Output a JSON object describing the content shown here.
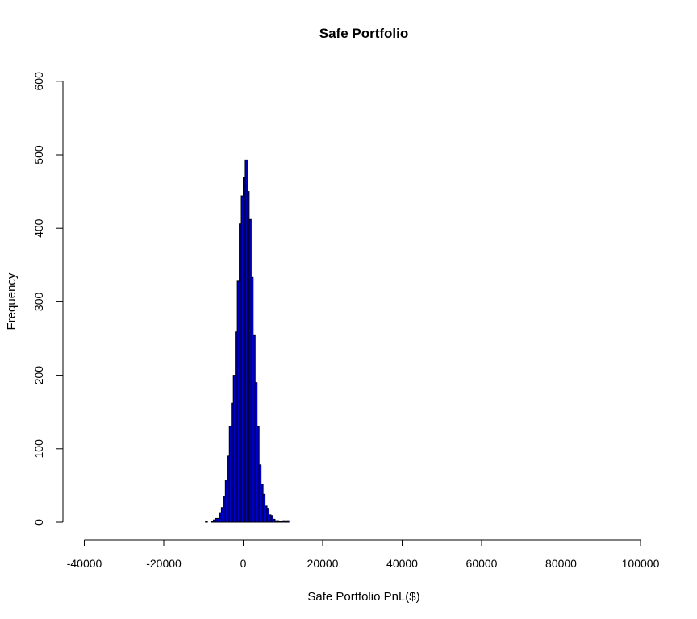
{
  "chart_data": {
    "type": "bar",
    "title": "Safe Portfolio",
    "xlabel": "Safe Portfolio PnL($)",
    "ylabel": "Frequency",
    "xlim": [
      -40000,
      100000
    ],
    "ylim": [
      0,
      600
    ],
    "x_ticks": [
      -40000,
      -20000,
      0,
      20000,
      40000,
      60000,
      80000,
      100000
    ],
    "x_tick_labels": [
      "-40000",
      "-20000",
      "0",
      "20000",
      "40000",
      "60000",
      "80000",
      "100000"
    ],
    "y_ticks": [
      0,
      100,
      200,
      300,
      400,
      500,
      600
    ],
    "y_tick_labels": [
      "0",
      "100",
      "200",
      "300",
      "400",
      "500",
      "600"
    ],
    "bin_width": 500,
    "bins": [
      {
        "x0": -9500,
        "count": 1
      },
      {
        "x0": -9000,
        "count": 0
      },
      {
        "x0": -8500,
        "count": 0
      },
      {
        "x0": -8000,
        "count": 1
      },
      {
        "x0": -7500,
        "count": 3
      },
      {
        "x0": -7000,
        "count": 5
      },
      {
        "x0": -6500,
        "count": 5
      },
      {
        "x0": -6000,
        "count": 13
      },
      {
        "x0": -5500,
        "count": 20
      },
      {
        "x0": -5000,
        "count": 35
      },
      {
        "x0": -4500,
        "count": 57
      },
      {
        "x0": -4000,
        "count": 90
      },
      {
        "x0": -3500,
        "count": 131
      },
      {
        "x0": -3000,
        "count": 162
      },
      {
        "x0": -2500,
        "count": 200
      },
      {
        "x0": -2000,
        "count": 259
      },
      {
        "x0": -1500,
        "count": 328
      },
      {
        "x0": -1000,
        "count": 406
      },
      {
        "x0": -500,
        "count": 444
      },
      {
        "x0": 0,
        "count": 469
      },
      {
        "x0": 500,
        "count": 493
      },
      {
        "x0": 1000,
        "count": 450
      },
      {
        "x0": 1500,
        "count": 412
      },
      {
        "x0": 2000,
        "count": 333
      },
      {
        "x0": 2500,
        "count": 254
      },
      {
        "x0": 3000,
        "count": 190
      },
      {
        "x0": 3500,
        "count": 130
      },
      {
        "x0": 4000,
        "count": 78
      },
      {
        "x0": 4500,
        "count": 52
      },
      {
        "x0": 5000,
        "count": 38
      },
      {
        "x0": 5500,
        "count": 22
      },
      {
        "x0": 6000,
        "count": 19
      },
      {
        "x0": 6500,
        "count": 10
      },
      {
        "x0": 7000,
        "count": 9
      },
      {
        "x0": 7500,
        "count": 4
      },
      {
        "x0": 8000,
        "count": 2
      },
      {
        "x0": 8500,
        "count": 2
      },
      {
        "x0": 9000,
        "count": 1
      },
      {
        "x0": 9500,
        "count": 1
      },
      {
        "x0": 10000,
        "count": 2
      },
      {
        "x0": 10500,
        "count": 1
      },
      {
        "x0": 11000,
        "count": 2
      }
    ],
    "bar_fill": "#0000CD",
    "bar_stroke": "#000000",
    "grid": false,
    "legend": "none"
  }
}
